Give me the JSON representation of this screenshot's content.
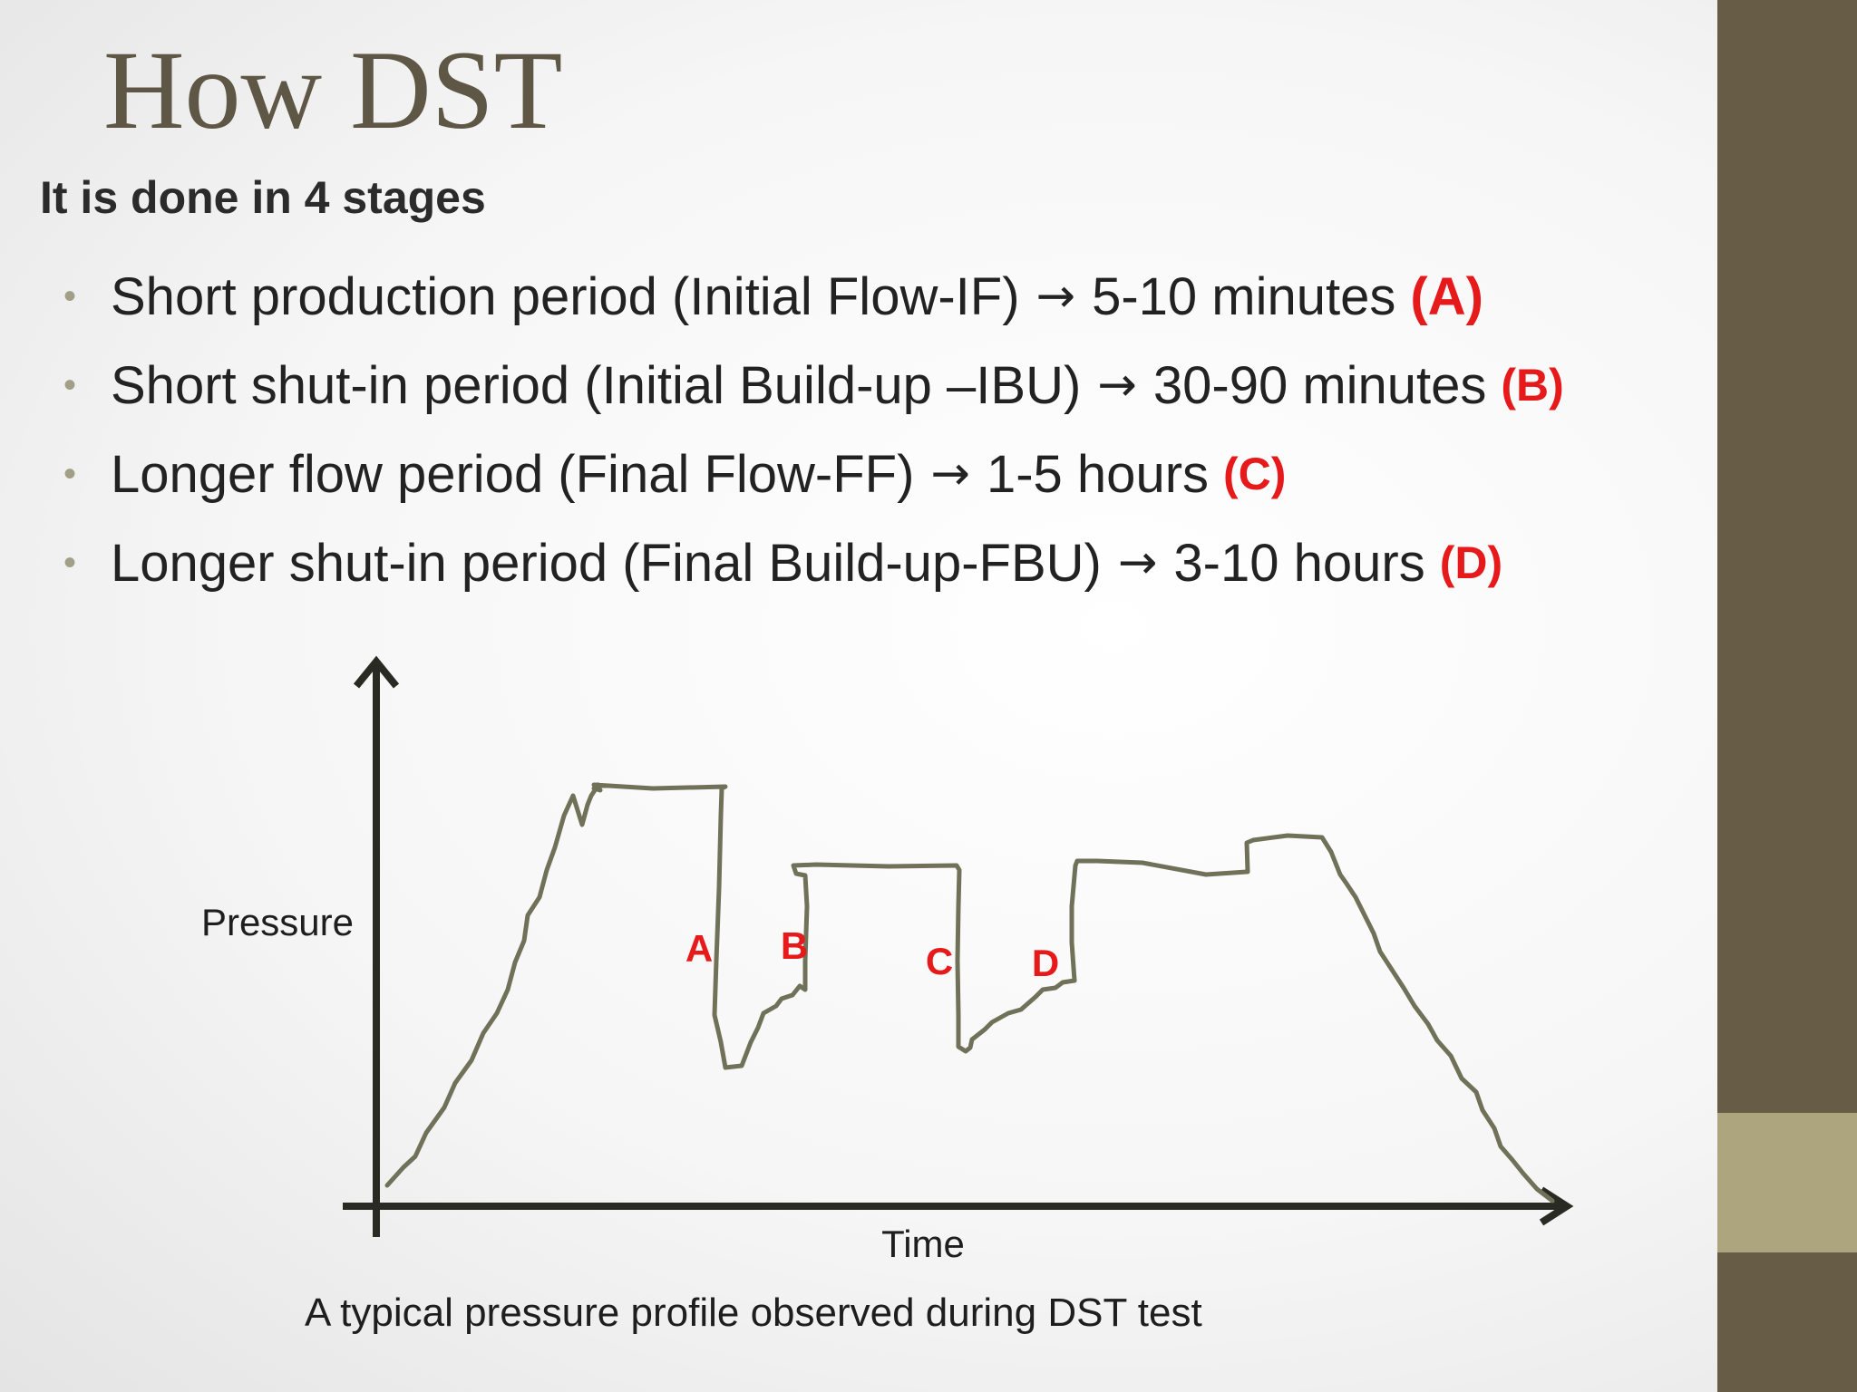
{
  "slide": {
    "title": "How DST",
    "subtitle": "It is done in 4 stages",
    "bullet_char": "•",
    "arrow_char": "→",
    "bullets": [
      {
        "text": "Short production period (Initial Flow-IF)",
        "duration": "5-10 minutes",
        "tag": "(A)"
      },
      {
        "text": "Short shut-in period (Initial Build-up –IBU)",
        "duration": "30-90 minutes",
        "tag": "(B)"
      },
      {
        "text": "Longer flow period (Final Flow-FF)",
        "duration": "1-5 hours",
        "tag": "(C)"
      },
      {
        "text": "Longer shut-in period (Final Build-up-FBU)",
        "duration": "3-10 hours",
        "tag": "(D)"
      }
    ]
  },
  "diagram": {
    "y_label": "Pressure",
    "x_label": "Time",
    "labels": {
      "a": "A",
      "b": "B",
      "c": "C",
      "d": "D"
    },
    "caption": "A typical pressure profile observed during DST test"
  },
  "colors": {
    "title": "#5f5745",
    "curve": "#6f7158",
    "label_red": "#e6191b",
    "axis": "#2a2a24",
    "sidebar": "#675c45",
    "sidebar_accent": "#aca57e"
  }
}
